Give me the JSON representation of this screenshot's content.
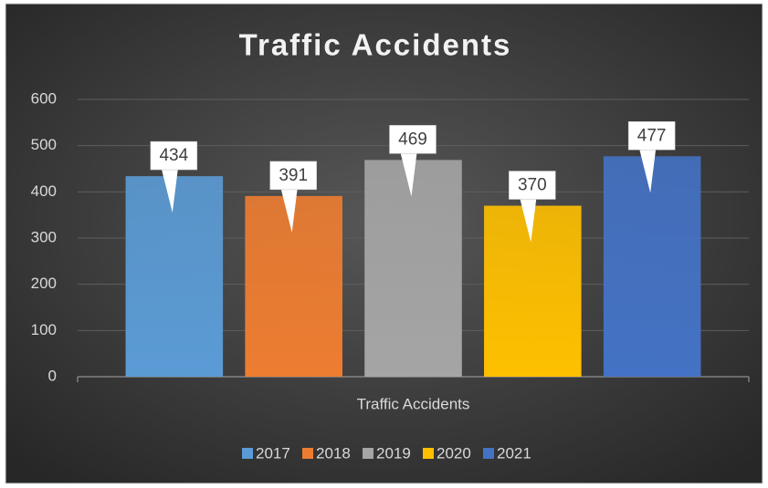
{
  "chart_data": {
    "type": "bar",
    "title": "Traffic Accidents",
    "categories": [
      "Traffic Accidents"
    ],
    "series": [
      {
        "name": "2017",
        "color": "#5b9bd5",
        "values": [
          434
        ]
      },
      {
        "name": "2018",
        "color": "#ed7d31",
        "values": [
          391
        ]
      },
      {
        "name": "2019",
        "color": "#a5a5a5",
        "values": [
          469
        ]
      },
      {
        "name": "2020",
        "color": "#ffc000",
        "values": [
          370
        ]
      },
      {
        "name": "2021",
        "color": "#4472c4",
        "values": [
          477
        ]
      }
    ],
    "ylim": [
      0,
      600
    ],
    "yticks": [
      0,
      100,
      200,
      300,
      400,
      500,
      600
    ],
    "grid": true,
    "legend": "bottom"
  }
}
